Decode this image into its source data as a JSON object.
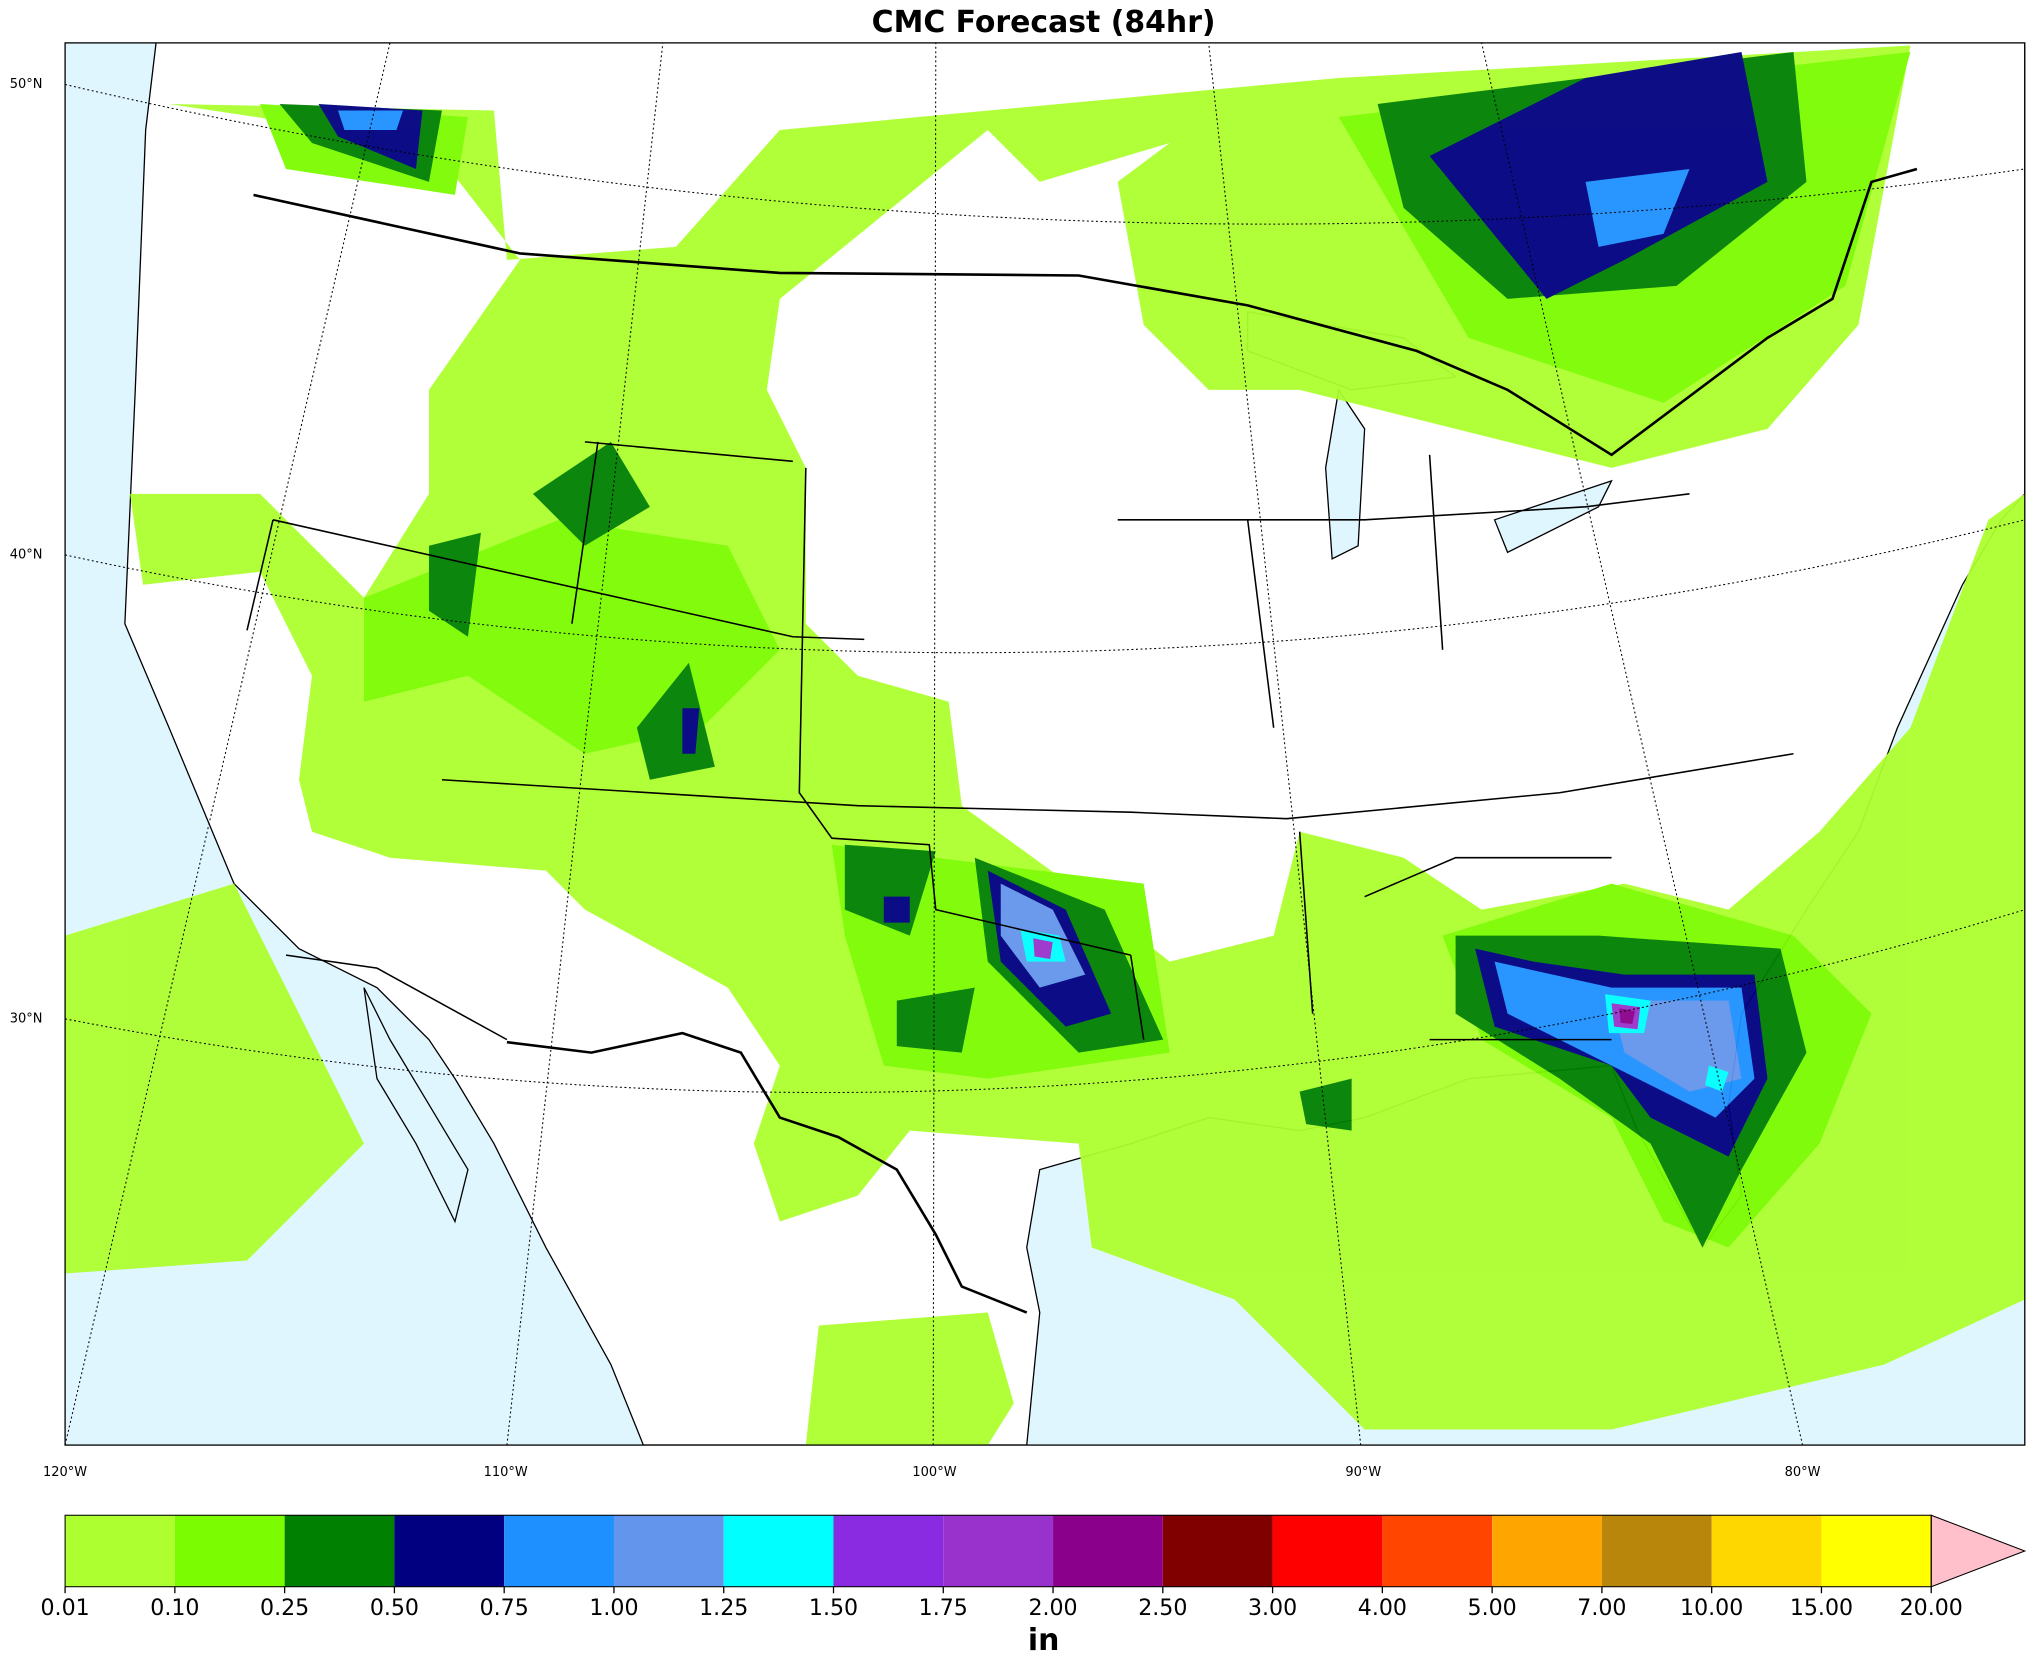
{
  "title": "CMC Forecast (84hr)",
  "map": {
    "lat_labels": [
      "50°N",
      "40°N",
      "30°N"
    ],
    "lon_labels": [
      "120°W",
      "110°W",
      "100°W",
      "90°W",
      "80°W"
    ]
  },
  "colorbar": {
    "label": "in",
    "levels": [
      {
        "value": 0.01,
        "label": "0.01"
      },
      {
        "value": 0.1,
        "label": "0.10"
      },
      {
        "value": 0.25,
        "label": "0.25"
      },
      {
        "value": 0.5,
        "label": "0.50"
      },
      {
        "value": 0.75,
        "label": "0.75"
      },
      {
        "value": 1,
        "label": "1.00"
      },
      {
        "value": 1.25,
        "label": "1.25"
      },
      {
        "value": 1.5,
        "label": "1.50"
      },
      {
        "value": 1.75,
        "label": "1.75"
      },
      {
        "value": 2,
        "label": "2.00"
      },
      {
        "value": 2.5,
        "label": "2.50"
      },
      {
        "value": 3,
        "label": "3.00"
      },
      {
        "value": 4,
        "label": "4.00"
      },
      {
        "value": 5,
        "label": "5.00"
      },
      {
        "value": 7,
        "label": "7.00"
      },
      {
        "value": 10,
        "label": "10.00"
      },
      {
        "value": 15,
        "label": "15.00"
      },
      {
        "value": 20,
        "label": "20.00"
      }
    ],
    "colors": [
      "#adff2f",
      "#7cfc00",
      "#008000",
      "#000080",
      "#1e90ff",
      "#6495ed",
      "#00ffff",
      "#8a2be2",
      "#9932cc",
      "#8b008b",
      "#800000",
      "#ff0000",
      "#ff4500",
      "#ffa500",
      "#b8860b",
      "#ffd700",
      "#ffff00"
    ],
    "over_color": "#ffc0cb"
  }
}
